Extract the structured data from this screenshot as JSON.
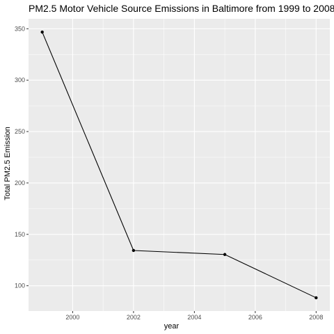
{
  "chart_data": {
    "type": "line",
    "title": "PM2.5 Motor Vehicle Source Emissions in Baltimore from 1999 to 2008",
    "xlabel": "year",
    "ylabel": "Total PM2.5 Emission",
    "x": [
      1999,
      2002,
      2005,
      2008
    ],
    "series": [
      {
        "values": [
          346.8,
          134.3,
          130.4,
          88.3
        ]
      }
    ],
    "xlim": [
      1998.55,
      2008.45
    ],
    "ylim": [
      75.4,
      359.7
    ],
    "xticks": [
      2000,
      2002,
      2004,
      2006,
      2008
    ],
    "yticks": [
      100,
      150,
      200,
      250,
      300,
      350
    ],
    "xtick_labels": [
      "2000",
      "2002",
      "2004",
      "2006",
      "2008"
    ],
    "ytick_labels": [
      "100",
      "150",
      "200",
      "250",
      "300",
      "350"
    ],
    "grid": true,
    "legend": "none",
    "colors": {
      "panel_background": "#ebebeb",
      "grid": "#ffffff",
      "line": "#000000",
      "point": "#000000",
      "tick_text": "#4d4d4d",
      "tick_mark": "#333333"
    }
  }
}
